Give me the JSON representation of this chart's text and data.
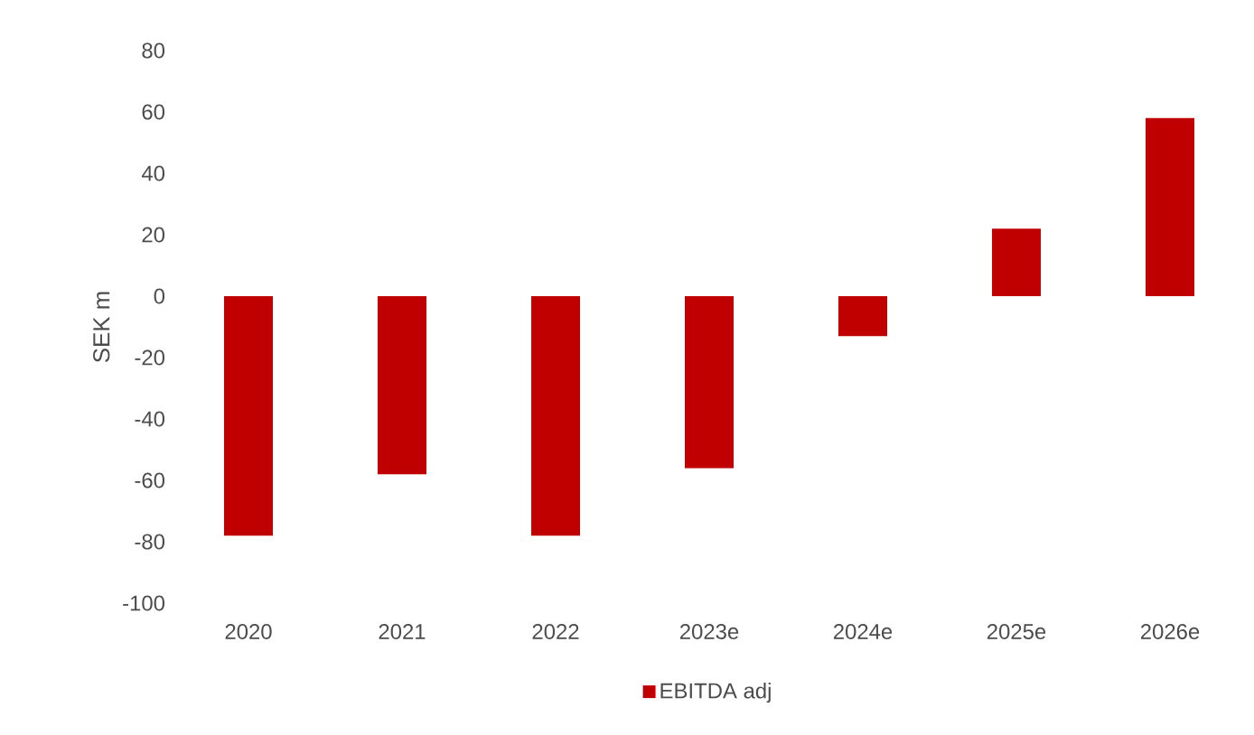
{
  "chart_data": {
    "type": "bar",
    "ylabel": "SEK m",
    "categories": [
      "2020",
      "2021",
      "2022",
      "2023e",
      "2024e",
      "2025e",
      "2026e"
    ],
    "series": [
      {
        "name": "EBITDA adj",
        "color": "#c00000",
        "values": [
          -78,
          -58,
          -78,
          -56,
          -13,
          22,
          58
        ]
      }
    ],
    "ylim": [
      -100,
      80
    ],
    "yticks": [
      -100,
      -80,
      -60,
      -40,
      -20,
      0,
      20,
      40,
      60,
      80
    ],
    "grid": false,
    "legend": "bottom"
  }
}
